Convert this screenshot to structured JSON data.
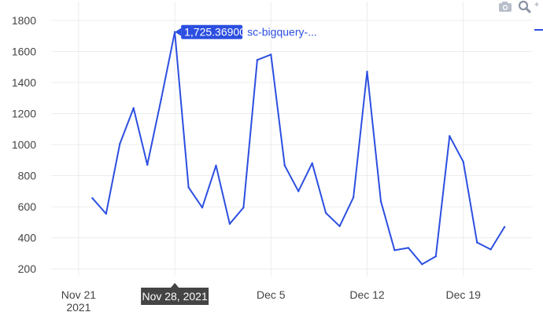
{
  "chart_data": {
    "type": "line",
    "title": "",
    "xlabel": "",
    "ylabel": "",
    "ylim": [
      150,
      1820
    ],
    "yticks": [
      200,
      400,
      600,
      800,
      1000,
      1200,
      1400,
      1600,
      1800
    ],
    "ytick_labels": [
      "200",
      "400",
      "600",
      "800",
      "1000",
      "1200",
      "1400",
      "1600",
      "1800"
    ],
    "x_start": "2021-11-19",
    "x_end": "2021-12-24",
    "xticks": [
      {
        "date": "2021-11-21",
        "label": "Nov 21",
        "sublabel": "2021"
      },
      {
        "date": "2021-11-28",
        "label": "",
        "sublabel": ""
      },
      {
        "date": "2021-12-05",
        "label": "Dec 5",
        "sublabel": ""
      },
      {
        "date": "2021-12-12",
        "label": "Dec 12",
        "sublabel": ""
      },
      {
        "date": "2021-12-19",
        "label": "Dec 19",
        "sublabel": ""
      }
    ],
    "grid": true,
    "legend": "top-right",
    "series": [
      {
        "name": "sc-bigquery-...",
        "color": "#2c4fe0",
        "x": [
          "2021-11-22",
          "2021-11-23",
          "2021-11-24",
          "2021-11-25",
          "2021-11-26",
          "2021-11-27",
          "2021-11-28",
          "2021-11-29",
          "2021-11-30",
          "2021-12-01",
          "2021-12-02",
          "2021-12-03",
          "2021-12-04",
          "2021-12-05",
          "2021-12-06",
          "2021-12-07",
          "2021-12-08",
          "2021-12-09",
          "2021-12-10",
          "2021-12-11",
          "2021-12-12",
          "2021-12-13",
          "2021-12-14",
          "2021-12-15",
          "2021-12-16",
          "2021-12-17",
          "2021-12-18",
          "2021-12-19",
          "2021-12-20",
          "2021-12-21",
          "2021-12-22"
        ],
        "values": [
          655,
          555,
          1005,
          1235,
          870,
          1290,
          1725.369,
          725,
          595,
          865,
          490,
          595,
          1545,
          1580,
          865,
          700,
          880,
          560,
          475,
          660,
          1470,
          635,
          320,
          335,
          230,
          280,
          1055,
          890,
          370,
          325,
          470
        ]
      }
    ],
    "hover": {
      "value_label": "1,725.36900",
      "series_label": "sc-bigquery-...",
      "x_label": "Nov 28, 2021",
      "x": "2021-11-28",
      "y": 1725.369
    }
  },
  "colors": {
    "line": "#2c4fe0",
    "hover_bg": "#2c4fe0",
    "xhover_bg": "#444444"
  },
  "icons": {
    "camera": "camera-icon",
    "zoom": "zoom-icon",
    "plus": "plus-icon"
  }
}
